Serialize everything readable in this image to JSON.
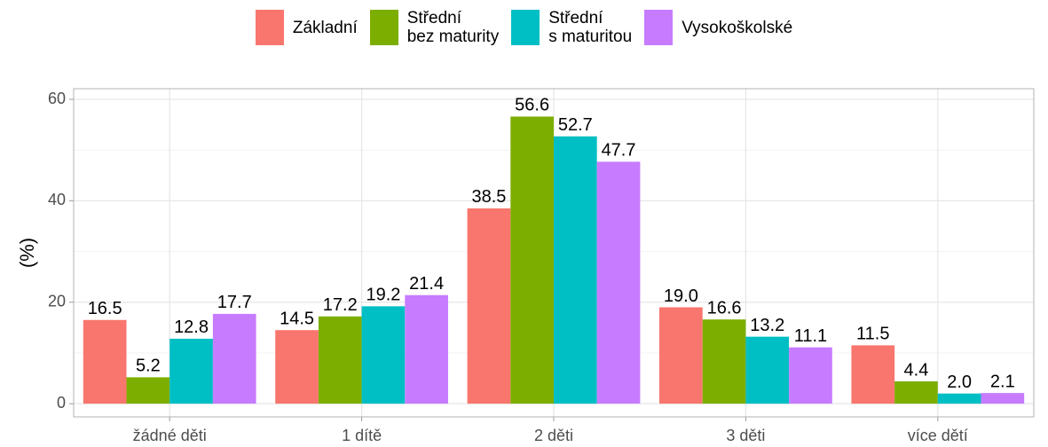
{
  "chart_data": {
    "type": "bar",
    "y_label": "(%)",
    "categories": [
      "žádné děti",
      "1 dítě",
      "2 děti",
      "3 děti",
      "více dětí"
    ],
    "series": [
      {
        "name": "Základní",
        "color": "#F8766D",
        "values": [
          16.5,
          14.5,
          38.5,
          19.0,
          11.5
        ],
        "value_labels": [
          "16.5",
          "14.5",
          "38.5",
          "19.0",
          "11.5"
        ]
      },
      {
        "name": "Střední\nbez maturity",
        "color": "#7CAE00",
        "values": [
          5.2,
          17.2,
          56.6,
          16.6,
          4.4
        ],
        "value_labels": [
          "5.2",
          "17.2",
          "56.6",
          "16.6",
          "4.4"
        ]
      },
      {
        "name": "Střední\ns maturitou",
        "color": "#00BFC4",
        "values": [
          12.8,
          19.2,
          52.7,
          13.2,
          2.0
        ],
        "value_labels": [
          "12.8",
          "19.2",
          "52.7",
          "13.2",
          "2.0"
        ]
      },
      {
        "name": "Vysokoškolské",
        "color": "#C77CFF",
        "values": [
          17.7,
          21.4,
          47.7,
          11.1,
          2.1
        ],
        "value_labels": [
          "17.7",
          "21.4",
          "47.7",
          "11.1",
          "2.1"
        ]
      }
    ],
    "ylim": [
      -2.6,
      62.1
    ],
    "yticks": [
      0,
      20,
      40,
      60
    ],
    "y_minor_ticks": [
      10,
      30,
      50
    ],
    "grid": true,
    "legend": "top"
  }
}
